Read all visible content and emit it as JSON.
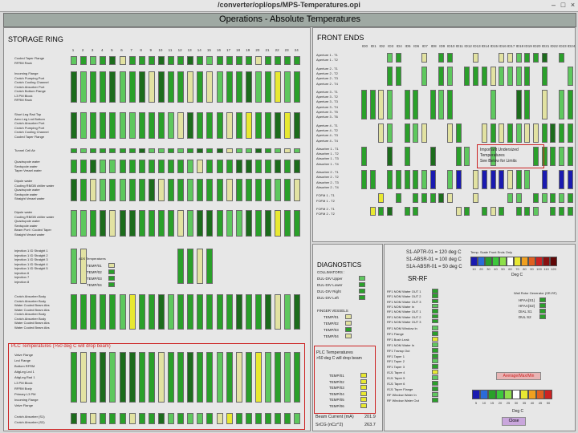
{
  "window": {
    "title": "/converter/opl/ops/MPS-Temperatures.opi",
    "minimize": "–",
    "maximize": "□",
    "close": "×"
  },
  "header": {
    "title": "Operations - Absolute Temperatures"
  },
  "colors": {
    "green": "#2aa02a",
    "dark_green": "#1c6c1c",
    "light_green": "#5ec85e",
    "pale": "#e2e2a2",
    "yellow": "#e8e832",
    "blue": "#1a1ab0",
    "red": "#cc2222"
  },
  "storage_ring": {
    "title": "STORAGE RING",
    "sectors": [
      "1",
      "2",
      "3",
      "4",
      "5",
      "6",
      "7",
      "8",
      "9",
      "10",
      "11",
      "12",
      "13",
      "14",
      "15",
      "16",
      "17",
      "18",
      "19",
      "20",
      "21",
      "22",
      "23",
      "24"
    ],
    "groups": [
      [
        "Cooled Taper Flange",
        "RFRM Rack"
      ],
      [
        "Incoming Flange",
        "Crotch Pumping Port",
        "Crotch Cooling Channel",
        "Crotch Absorber Port",
        "Crotch Bottom Flange",
        "L3 PM Block",
        "RFRM Rack"
      ],
      [
        "Short Leg Rad Top",
        "Aero Leg Lnd Bottom",
        "Crotch Absorber Port",
        "Crotch Pumping Port",
        "Crotch Cooling Channel",
        "Cooled Taper Flange"
      ],
      [
        "Tunnel Cell Air"
      ],
      [
        "Quadrupole water",
        "Sextupole water",
        "Taper Vessel water"
      ],
      [
        "Dipole water",
        "Cooling RB/DB chiller water",
        "Quadrupole water",
        "Sextupole water",
        "Straight Vessel water"
      ],
      [
        "Dipole water",
        "Cooling RB/DB chiller water",
        "Quadrupole water",
        "Sextupole water",
        "Beam Port / Cooled Taper",
        "Straight Vessel water"
      ],
      [
        "Injection 1 ID Straight 1",
        "Injection 1 ID Straight 2",
        "Injection 1 ID Straight 3",
        "Injection 1 ID Straight 4",
        "Injection 1 ID Straight 5",
        "Injection 6",
        "Injection 7",
        "Injection 8"
      ],
      [
        "Crotch Absorber Body",
        "Crotch Absorber Body",
        "Water Cooled Beam Abs",
        "Water Cooled Beam Abs",
        "Crotch Absorber Body",
        "Crotch Absorber Body",
        "Water Cooled Beam Abs",
        "Water Cooled Beam Abs"
      ]
    ],
    "ads_title": "ADS Temperatures",
    "ads_items": [
      "TEMP/01",
      "TEMP/02",
      "TEMP/03",
      "TEMP/04"
    ],
    "plc_title": "PLC Temperatures (>50 deg C will drop beam)",
    "plc_labels": [
      "Valve Flange",
      "Lnd Flange",
      "Bottom RFRM",
      "AttgLeg Lnd 1",
      "AttgLeg Rad 1",
      "L3 PM Block",
      "RFRM Body",
      "Primary L3 PM",
      "Incoming Flange",
      "Valve Flange",
      "",
      "Crotch Absorber (S1)",
      "Crotch Absorber (S2)"
    ]
  },
  "front_ends": {
    "title": "FRONT ENDS",
    "columns": [
      "ID0",
      "ID1",
      "ID2",
      "ID3",
      "ID4",
      "ID5",
      "ID6",
      "ID7",
      "ID8",
      "ID9",
      "ID10",
      "ID11",
      "ID12",
      "ID13",
      "ID14",
      "ID15",
      "ID16",
      "ID17",
      "ID18",
      "ID19",
      "ID20",
      "ID21",
      "ID22",
      "ID23",
      "ID24"
    ],
    "rows": [
      "Aperture 1 - T1",
      "Aperture 1 - T2",
      "",
      "Aperture 2 - T1",
      "Aperture 2 - T2",
      "Aperture 2 - T3",
      "Aperture 2 - T4",
      "",
      "Aperture 3 - T1",
      "Aperture 3 - T2",
      "Aperture 3 - T3",
      "Aperture 3 - T4",
      "Aperture 3 - T5",
      "Aperture 3 - T6",
      "",
      "Aperture 4 - T1",
      "Aperture 4 - T2",
      "Aperture 4 - T3",
      "Aperture 4 - T4",
      "",
      "Absorber 1 - T1",
      "Absorber 1 - T2",
      "Absorber 1 - T3",
      "Absorber 1 - T4",
      "",
      "Absorber 2 - T1",
      "Absorber 2 - T2",
      "Absorber 2 - T3",
      "Absorber 2 - T4",
      "",
      "FOFM 1 - T1",
      "FOFM 1 - T2",
      "",
      "FOFM 2 - T1",
      "FOFM 2 - T2"
    ],
    "note": [
      "Important Undersized",
      "Temperatures",
      "See Below for Limits"
    ]
  },
  "limits": {
    "lines": [
      "S1-APTR-01 = 120 deg C",
      "S1-ABSR-01 = 100 deg C",
      "S1A-ABSR-01 = 50 deg C"
    ],
    "scale_title": "Temp. Scale Front Ends Only",
    "scale_ticks": [
      "10",
      "20",
      "30",
      "40",
      "50",
      "60",
      "70",
      "80",
      "90",
      "100",
      "110",
      "120"
    ],
    "scale_unit": "Deg C"
  },
  "diagnostics": {
    "title": "DIAGNOSTICS",
    "collimators_title": "COLLIMATORS :",
    "collimators": [
      "DUL-DIV Upper",
      "DUL-DIV Lower",
      "DUL-DIV Right",
      "DUL-DIV Left"
    ],
    "finger_title": "FINGER VESSELS",
    "fingers": [
      "TEMP/01",
      "TEMP/02",
      "TEMP/03",
      "TEMP/04"
    ]
  },
  "sr_rf": {
    "title": "SR-RF",
    "group1": [
      "RF1 NOM Water OUT 1",
      "RF1 NOM Water OUT 2",
      "RF1 NOM Water OUT 3",
      "RF1 NOM Water In",
      "RF1 NOM Water OUT 1",
      "RF1 NOM Water OUT 2",
      "RF1 NOM Water OUT 3"
    ],
    "group2": [
      "RF1 NOM Window In",
      "RF1 Flange",
      "RF1 Bush Leak",
      "RF1 NOM Water In",
      "RF1 Transp Out",
      "RF1 Taper 1",
      "RF1 Taper 2",
      "RF1 Taper 3",
      "ISJ1 Taper 4",
      "ISJ1 Taper 5",
      "ISJ1 Taper 6",
      "ISJ1 Taper Flange",
      "RF Window Water In",
      "RF Window Water Out"
    ],
    "vessels_title": "Wall Rotor Generator (SR-RF)",
    "vessels": [
      "HFAA(S1)",
      "HFAA(S2)",
      "DIAL S1",
      "DUL S2"
    ],
    "button": "Average/Max/Min",
    "scale_ticks": [
      "5",
      "10",
      "15",
      "20",
      "25",
      "30",
      "35",
      "40",
      "45",
      "50"
    ],
    "scale_unit": "Deg C",
    "close": "Close"
  },
  "plc_mid": {
    "title": "PLC Temperatures",
    "subtitle": ">50 deg C will drop beam",
    "items": [
      "TEMP/01",
      "TEMP/02",
      "TEMP/03",
      "TEMP/04",
      "TEMP/05",
      "TEMP/06"
    ]
  },
  "beam": {
    "current_label": "Beam Current (mA)",
    "current_value": "201.9",
    "pressure_label": "SrCG (nCz^2)",
    "pressure_value": "263.7"
  }
}
